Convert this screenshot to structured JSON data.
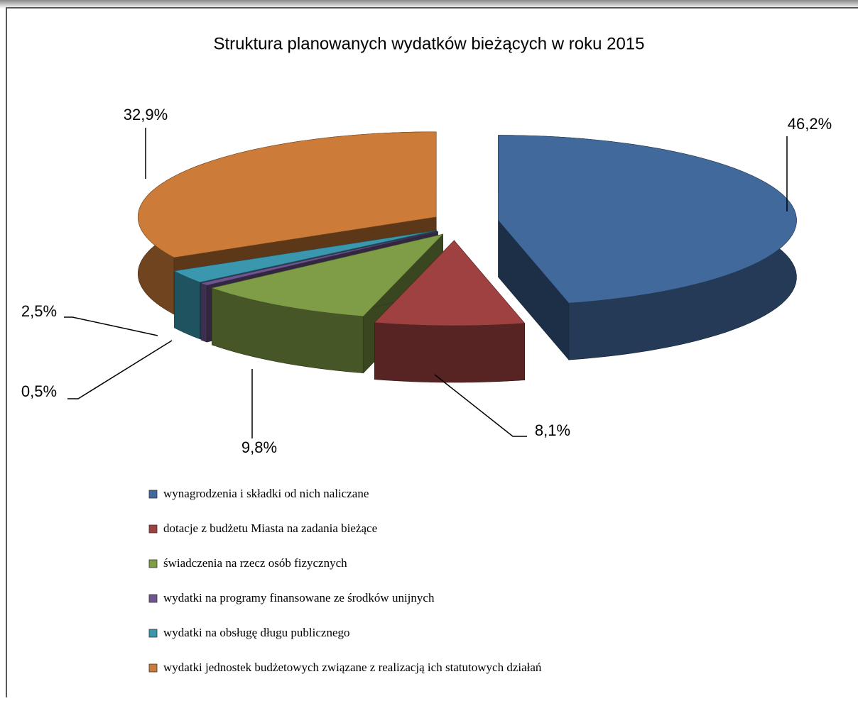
{
  "chart_data": {
    "type": "pie3d",
    "title": "Struktura planowanych wydatków bieżących  w roku 2015",
    "series": [
      {
        "name": "wynagrodzenia  i składki  od nich  naliczane",
        "color": "#41699c",
        "values": [
          46.2
        ],
        "value_labels": [
          "46,2%"
        ]
      },
      {
        "name": "dotacje z budżetu Miasta na zadania  bieżące",
        "color": "#9e4140",
        "values": [
          8.1
        ],
        "value_labels": [
          "8,1%"
        ]
      },
      {
        "name": "świadczenia  na rzecz osób fizycznych",
        "color": "#7f9c46",
        "values": [
          9.8
        ],
        "value_labels": [
          "9,8%"
        ]
      },
      {
        "name": "wydatki  na programy  finansowane  ze środków unijnych",
        "color": "#6f5590",
        "values": [
          0.5
        ],
        "value_labels": [
          "0,5%"
        ]
      },
      {
        "name": "wydatki  na obsługę długu  publicznego",
        "color": "#3b97ae",
        "values": [
          2.5
        ],
        "value_labels": [
          "2,5%"
        ]
      },
      {
        "name": "wydatki   jednostek budżetowych związane  z realizacją  ich statutowych  działań",
        "color": "#cc7c38",
        "values": [
          32.9
        ],
        "value_labels": [
          "32,9%"
        ]
      }
    ]
  }
}
